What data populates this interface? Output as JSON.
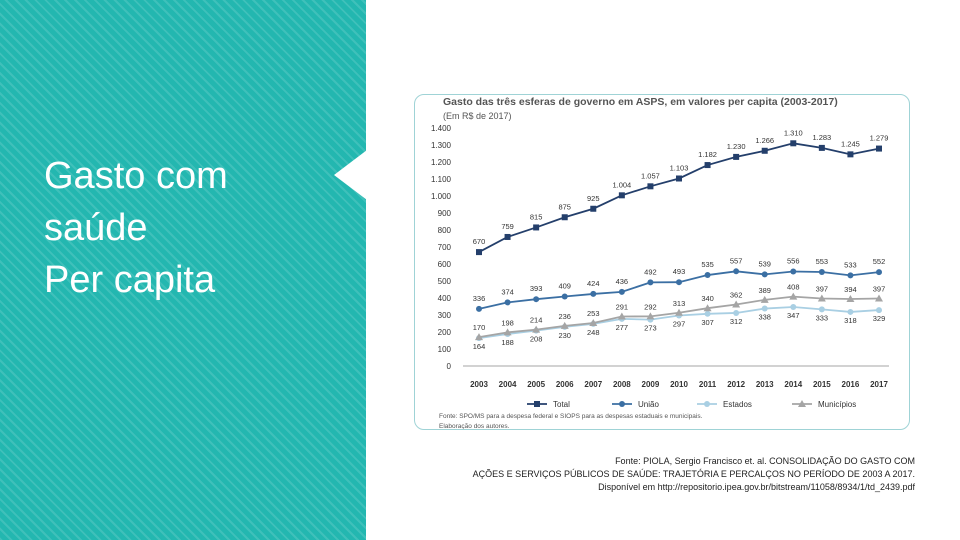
{
  "slide": {
    "title_lines": [
      "Gasto com",
      "saúde",
      "Per capita"
    ],
    "source_lines": [
      "Fonte: PIOLA, Sergio Francisco et. al. CONSOLIDAÇÃO DO GASTO COM",
      "AÇÕES E SERVIÇOS PÚBLICOS DE SAÚDE: TRAJETÓRIA E PERCALÇOS NO PERÍODO DE 2003 A 2017.",
      "Disponível em http://repositorio.ipea.gov.br/bitstream/11058/8934/1/td_2439.pdf"
    ],
    "colors": {
      "panel": "#23b7b0",
      "card_border": "#9fd3d6"
    }
  },
  "chart_data": {
    "type": "line",
    "title": "Gasto das três esferas de governo em ASPS, em valores per capita (2003-2017)",
    "subtitle": "(Em R$ de 2017)",
    "x": [
      "2003",
      "2004",
      "2005",
      "2006",
      "2007",
      "2008",
      "2009",
      "2010",
      "2011",
      "2012",
      "2013",
      "2014",
      "2015",
      "2016",
      "2017"
    ],
    "ylim": [
      0,
      1400
    ],
    "yticks": [
      0,
      100,
      200,
      300,
      400,
      500,
      600,
      700,
      800,
      900,
      1000,
      1100,
      1200,
      1300,
      1400
    ],
    "ytick_labels": [
      "0",
      "100",
      "200",
      "300",
      "400",
      "500",
      "600",
      "700",
      "800",
      "900",
      "1.000",
      "1.100",
      "1.200",
      "1.300",
      "1.400"
    ],
    "grid": false,
    "legend": "bottom",
    "series": [
      {
        "name": "Total",
        "color": "#243f6b",
        "marker": "square",
        "values": [
          670,
          759,
          815,
          875,
          925,
          1004,
          1057,
          1103,
          1182,
          1230,
          1266,
          1310,
          1283,
          1245,
          1279
        ],
        "labels": [
          "670",
          "759",
          "815",
          "875",
          "925",
          "1.004",
          "1.057",
          "1.103",
          "1.182",
          "1.230",
          "1.266",
          "1.310",
          "1.283",
          "1.245",
          "1.279"
        ]
      },
      {
        "name": "União",
        "color": "#3b6fa3",
        "marker": "circle",
        "values": [
          336,
          374,
          393,
          409,
          424,
          436,
          492,
          493,
          535,
          557,
          539,
          556,
          553,
          533,
          552
        ],
        "labels": [
          "336",
          "374",
          "393",
          "409",
          "424",
          "436",
          "492",
          "493",
          "535",
          "557",
          "539",
          "556",
          "553",
          "533",
          "552"
        ]
      },
      {
        "name": "Estados",
        "color": "#a9cfe3",
        "marker": "circle",
        "values": [
          164,
          188,
          208,
          230,
          248,
          277,
          273,
          297,
          307,
          312,
          338,
          347,
          333,
          318,
          329
        ],
        "labels": [
          "164",
          "188",
          "208",
          "230",
          "248",
          "277",
          "273",
          "297",
          "307",
          "312",
          "338",
          "347",
          "333",
          "318",
          "329"
        ]
      },
      {
        "name": "Municípios",
        "color": "#a5a5a5",
        "marker": "triangle",
        "values": [
          170,
          198,
          214,
          236,
          253,
          291,
          292,
          313,
          340,
          362,
          389,
          408,
          397,
          394,
          397
        ],
        "labels": [
          "170",
          "198",
          "214",
          "236",
          "253",
          "291",
          "292",
          "313",
          "340",
          "362",
          "389",
          "408",
          "397",
          "394",
          "397"
        ]
      }
    ],
    "footnote_lines": [
      "Fonte: SPO/MS para a despesa federal e SIOPS para as despesas estaduais e municipais.",
      "Elaboração dos autores."
    ]
  }
}
